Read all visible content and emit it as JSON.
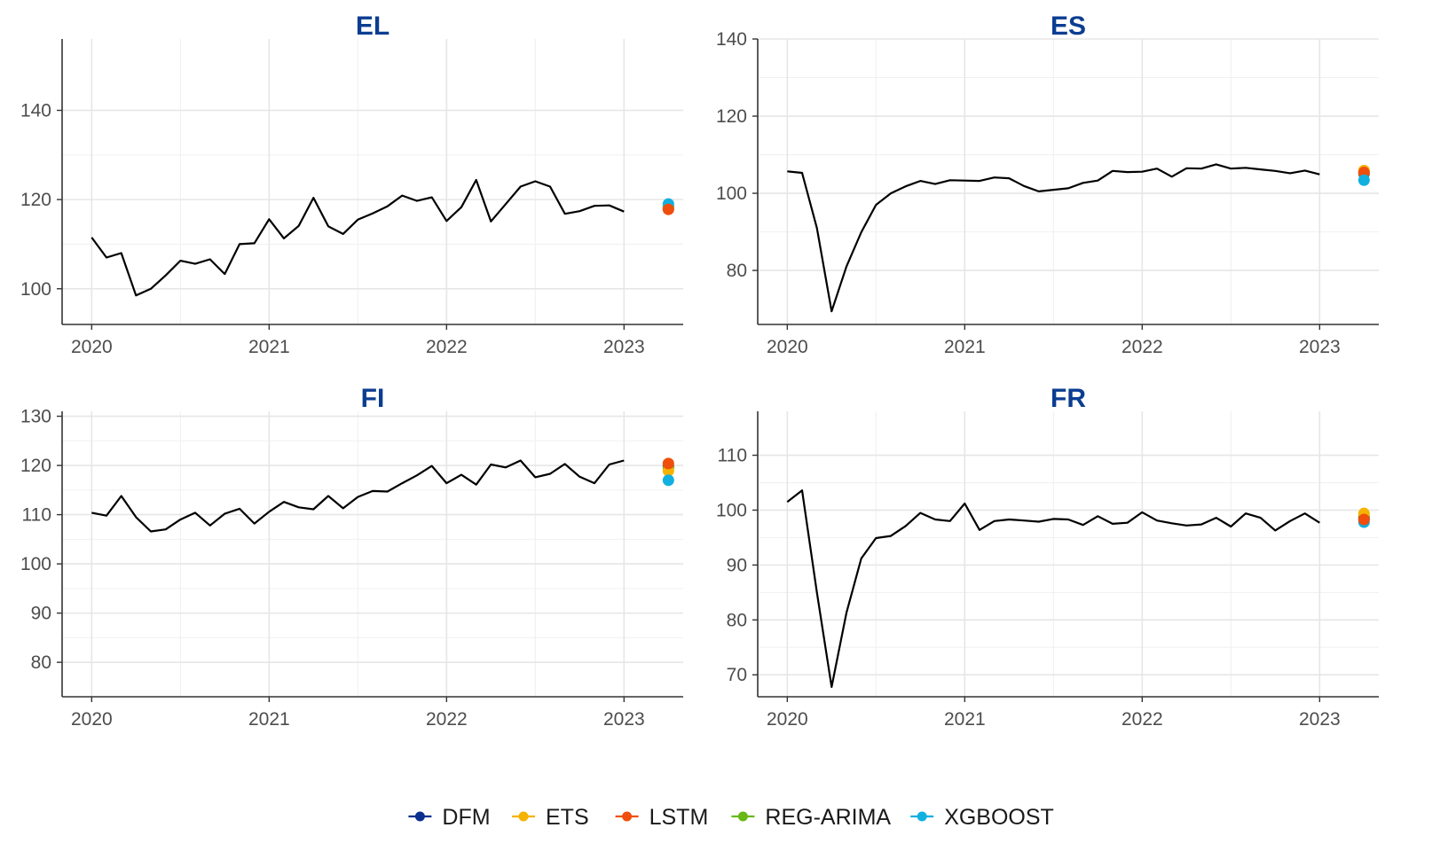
{
  "colors": {
    "DFM": "#0b2f8f",
    "ETS": "#f5b300",
    "LSTM": "#f04e0c",
    "REG-ARIMA": "#67b814",
    "XGBOOST": "#12b0e0",
    "title": "#0b3d91"
  },
  "legend": {
    "items": [
      {
        "label": "DFM",
        "color": "#0b2f8f"
      },
      {
        "label": "ETS",
        "color": "#f5b300"
      },
      {
        "label": "LSTM",
        "color": "#f04e0c"
      },
      {
        "label": "REG-ARIMA",
        "color": "#67b814"
      },
      {
        "label": "XGBOOST",
        "color": "#12b0e0"
      }
    ],
    "position": "bottom"
  },
  "chart_data": [
    {
      "type": "line",
      "title": "EL",
      "xlim": [
        "2019-11-01",
        "2023-05-01"
      ],
      "ylim": [
        92,
        156
      ],
      "xticks": [
        "2020",
        "2021",
        "2022",
        "2023"
      ],
      "yticks": [
        100,
        120,
        140
      ],
      "grid": true,
      "series": [
        {
          "x_start": "2020-01",
          "values": [
            111.5,
            107.0,
            108.0,
            98.5,
            100.0,
            103.0,
            106.3,
            105.6,
            106.6,
            103.3,
            110.0,
            110.2,
            115.6,
            111.3,
            114.1,
            120.4,
            114.0,
            112.3,
            115.5,
            116.9,
            118.5,
            120.9,
            119.7,
            120.5,
            115.2,
            118.3,
            124.4,
            115.1,
            119.0,
            122.9,
            124.1,
            122.9,
            116.8,
            117.4,
            118.6,
            118.7,
            117.3
          ]
        }
      ],
      "forecasts": {
        "date": "2023-04",
        "points": [
          {
            "model": "DFM",
            "value": 118.0
          },
          {
            "model": "ETS",
            "value": 118.4
          },
          {
            "model": "REG-ARIMA",
            "value": 118.5
          },
          {
            "model": "XGBOOST",
            "value": 119.0
          },
          {
            "model": "LSTM",
            "value": 117.8
          }
        ]
      }
    },
    {
      "type": "line",
      "title": "ES",
      "xlim": [
        "2019-11-01",
        "2023-05-01"
      ],
      "ylim": [
        66,
        140
      ],
      "xticks": [
        "2020",
        "2021",
        "2022",
        "2023"
      ],
      "yticks": [
        80,
        100,
        120,
        140
      ],
      "grid": true,
      "series": [
        {
          "x_start": "2020-01",
          "values": [
            105.7,
            105.3,
            91.0,
            69.4,
            81.0,
            89.9,
            97.0,
            100.0,
            101.8,
            103.2,
            102.4,
            103.4,
            103.3,
            103.2,
            104.1,
            103.9,
            101.9,
            100.5,
            100.9,
            101.3,
            102.7,
            103.3,
            105.8,
            105.5,
            105.6,
            106.4,
            104.3,
            106.5,
            106.4,
            107.5,
            106.4,
            106.6,
            106.2,
            105.8,
            105.2,
            105.9,
            104.9
          ]
        }
      ],
      "forecasts": {
        "date": "2023-04",
        "points": [
          {
            "model": "DFM",
            "value": 105.1
          },
          {
            "model": "REG-ARIMA",
            "value": 105.3
          },
          {
            "model": "ETS",
            "value": 105.9
          },
          {
            "model": "LSTM",
            "value": 105.4
          },
          {
            "model": "XGBOOST",
            "value": 103.4
          }
        ]
      }
    },
    {
      "type": "line",
      "title": "FI",
      "xlim": [
        "2019-11-01",
        "2023-05-01"
      ],
      "ylim": [
        73,
        131
      ],
      "xticks": [
        "2020",
        "2021",
        "2022",
        "2023"
      ],
      "yticks": [
        80,
        90,
        100,
        110,
        120,
        130
      ],
      "grid": true,
      "series": [
        {
          "x_start": "2020-01",
          "values": [
            110.4,
            109.8,
            113.8,
            109.5,
            106.6,
            107.0,
            109.0,
            110.4,
            107.8,
            110.2,
            111.2,
            108.2,
            110.6,
            112.6,
            111.5,
            111.1,
            113.8,
            111.3,
            113.6,
            114.8,
            114.7,
            116.4,
            118.0,
            119.9,
            116.4,
            118.1,
            116.1,
            120.2,
            119.6,
            121.0,
            117.6,
            118.3,
            120.3,
            117.7,
            116.4,
            120.2,
            121.0
          ]
        }
      ],
      "forecasts": {
        "date": "2023-04",
        "points": [
          {
            "model": "DFM",
            "value": 119.8
          },
          {
            "model": "REG-ARIMA",
            "value": 119.5
          },
          {
            "model": "ETS",
            "value": 118.9
          },
          {
            "model": "LSTM",
            "value": 120.4
          },
          {
            "model": "XGBOOST",
            "value": 117.0
          }
        ]
      }
    },
    {
      "type": "line",
      "title": "FR",
      "xlim": [
        "2019-11-01",
        "2023-05-01"
      ],
      "ylim": [
        66,
        118
      ],
      "xticks": [
        "2020",
        "2021",
        "2022",
        "2023"
      ],
      "yticks": [
        70,
        80,
        90,
        100,
        110
      ],
      "grid": true,
      "series": [
        {
          "x_start": "2020-01",
          "values": [
            101.5,
            103.6,
            85.0,
            67.8,
            81.3,
            91.2,
            94.9,
            95.3,
            97.1,
            99.5,
            98.3,
            98.0,
            101.2,
            96.4,
            98.0,
            98.3,
            98.1,
            97.9,
            98.4,
            98.3,
            97.3,
            98.9,
            97.5,
            97.7,
            99.6,
            98.1,
            97.6,
            97.2,
            97.4,
            98.6,
            97.0,
            99.4,
            98.6,
            96.3,
            98.0,
            99.4,
            97.7
          ]
        }
      ],
      "forecasts": {
        "date": "2023-04",
        "points": [
          {
            "model": "REG-ARIMA",
            "value": 98.8
          },
          {
            "model": "DFM",
            "value": 98.4
          },
          {
            "model": "ETS",
            "value": 99.4
          },
          {
            "model": "XGBOOST",
            "value": 97.8
          },
          {
            "model": "LSTM",
            "value": 98.3
          }
        ]
      }
    }
  ]
}
